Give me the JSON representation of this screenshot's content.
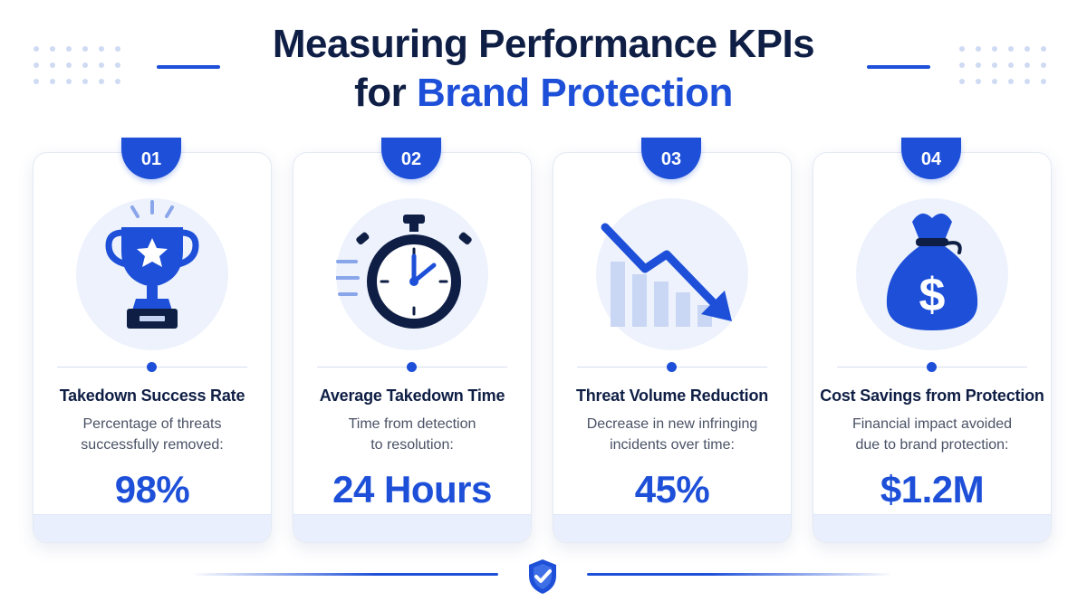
{
  "title": {
    "line1": "Measuring Performance KPIs",
    "line2_prefix": "for ",
    "line2_accent": "Brand Protection"
  },
  "colors": {
    "accent": "#1d4fd8",
    "navy": "#0f1e45",
    "light_circle": "#edf2fc"
  },
  "cards": [
    {
      "number": "01",
      "icon": "trophy-icon",
      "title": "Takedown Success Rate",
      "desc_line1": "Percentage of threats",
      "desc_line2": "successfully removed:",
      "value": "98%"
    },
    {
      "number": "02",
      "icon": "stopwatch-icon",
      "title": "Average Takedown Time",
      "desc_line1": "Time from detection",
      "desc_line2": "to resolution:",
      "value": "24 Hours"
    },
    {
      "number": "03",
      "icon": "trend-down-icon",
      "title": "Threat Volume Reduction",
      "desc_line1": "Decrease in new infringing",
      "desc_line2": "incidents over time:",
      "value": "45%"
    },
    {
      "number": "04",
      "icon": "money-bag-icon",
      "title": "Cost Savings from Protection",
      "desc_line1": "Financial impact avoided",
      "desc_line2": "due to brand protection:",
      "value": "$1.2M"
    }
  ],
  "footer": {
    "icon": "shield-check-icon"
  }
}
